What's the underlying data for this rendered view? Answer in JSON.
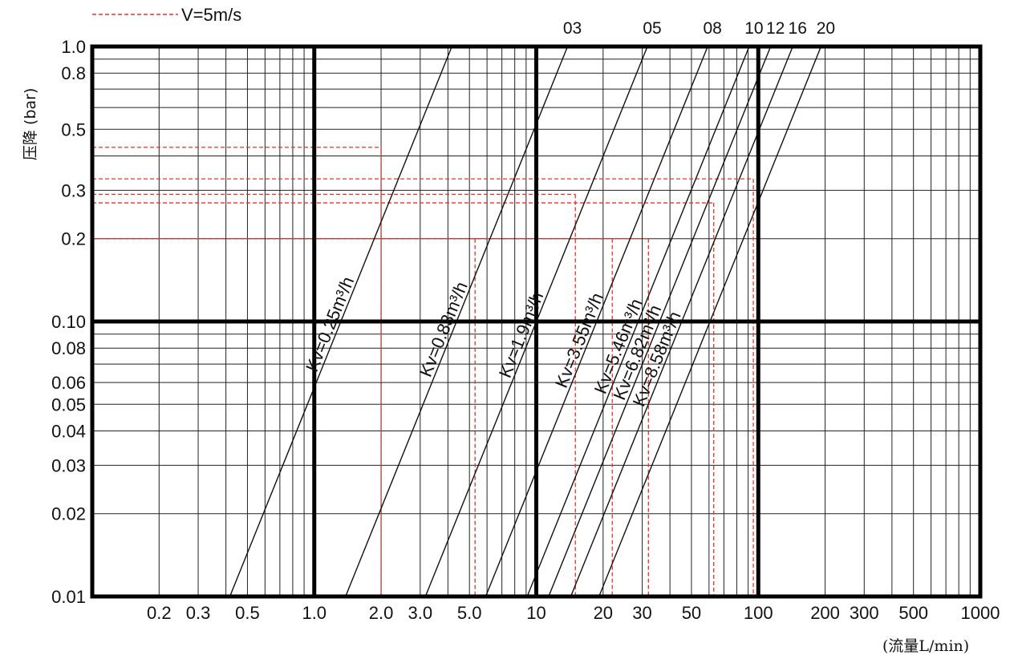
{
  "chart_data": {
    "type": "line",
    "scale": "log-log",
    "xlabel": "(流量L/min)",
    "ylabel": "压降 (bar)",
    "xlim": [
      0.1,
      1000
    ],
    "ylim": [
      0.01,
      1.0
    ],
    "x_ticks": [
      "0.2",
      "0.3",
      "0.5",
      "1.0",
      "2.0",
      "3.0",
      "5.0",
      "10",
      "20",
      "30",
      "50",
      "100",
      "200",
      "300",
      "500",
      "1000"
    ],
    "y_ticks": [
      "0.01",
      "0.02",
      "0.03",
      "0.04",
      "0.05",
      "0.06",
      "0.08",
      "0.10",
      "0.2",
      "0.3",
      "0.5",
      "0.8",
      "1.0"
    ],
    "legend": {
      "label": "V=5m/s",
      "style": "red dashed"
    },
    "series": [
      {
        "top_label": "",
        "kv_label": "Kv=0.25m³/h",
        "kv": 0.25
      },
      {
        "top_label": "03",
        "kv_label": "Kv=0.83m³/h",
        "kv": 0.83
      },
      {
        "top_label": "05",
        "kv_label": "Kv=1.9m³/h",
        "kv": 1.9
      },
      {
        "top_label": "08",
        "kv_label": "Kv=3.55m³/h",
        "kv": 3.55
      },
      {
        "top_label": "10",
        "kv_label": "Kv=5.46m³/h",
        "kv": 5.46
      },
      {
        "top_label": "12",
        "kv_label": "Kv=6.82m³/h",
        "kv": 6.82
      },
      {
        "top_label": "16",
        "kv_label": "Kv=8.58m³/h",
        "kv": 8.58
      },
      {
        "top_label": "20",
        "kv_label": "",
        "kv": 11.5
      }
    ],
    "v5_markers": [
      {
        "flow": 2.0,
        "dp": 0.43
      },
      {
        "flow": 5.3,
        "dp": 0.2
      },
      {
        "flow": 15,
        "dp": 0.29
      },
      {
        "flow": 22,
        "dp": 0.2
      },
      {
        "flow": 32,
        "dp": 0.2
      },
      {
        "flow": 63,
        "dp": 0.27
      },
      {
        "flow": 95,
        "dp": 0.33
      }
    ],
    "grid": true,
    "colors": {
      "line": "#111111",
      "marker": "#e8332a"
    }
  }
}
